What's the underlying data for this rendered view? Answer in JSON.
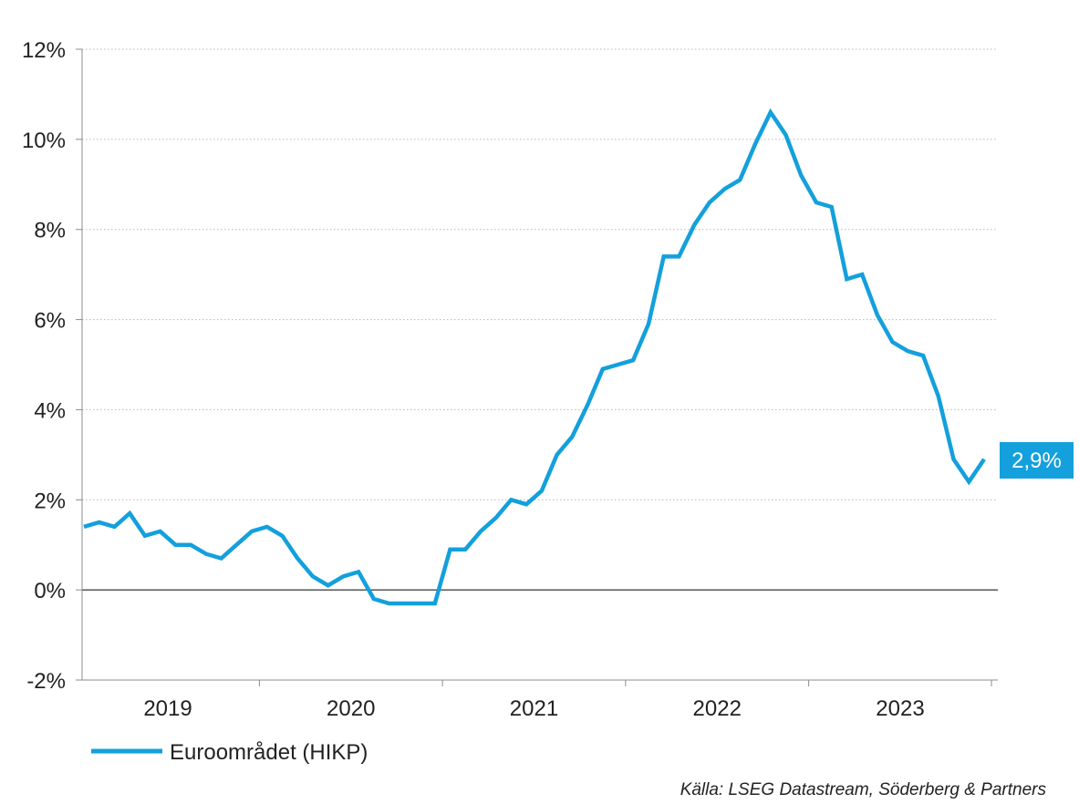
{
  "chart_data": {
    "type": "line",
    "title": "",
    "xlabel": "",
    "ylabel": "",
    "x_start": "2019-01",
    "x_end": "2023-12",
    "x_ticks": [
      "2019",
      "2020",
      "2021",
      "2022",
      "2023"
    ],
    "y_ticks": [
      "-2%",
      "0%",
      "2%",
      "4%",
      "6%",
      "8%",
      "10%",
      "12%"
    ],
    "ylim": [
      -2,
      12
    ],
    "grid": "horizontal-dotted",
    "zero_line": true,
    "series": [
      {
        "name": "Euroområdet (HIKP)",
        "color": "#13a0dc",
        "x": [
          "2019-01",
          "2019-02",
          "2019-03",
          "2019-04",
          "2019-05",
          "2019-06",
          "2019-07",
          "2019-08",
          "2019-09",
          "2019-10",
          "2019-11",
          "2019-12",
          "2020-01",
          "2020-02",
          "2020-03",
          "2020-04",
          "2020-05",
          "2020-06",
          "2020-07",
          "2020-08",
          "2020-09",
          "2020-10",
          "2020-11",
          "2020-12",
          "2021-01",
          "2021-02",
          "2021-03",
          "2021-04",
          "2021-05",
          "2021-06",
          "2021-07",
          "2021-08",
          "2021-09",
          "2021-10",
          "2021-11",
          "2021-12",
          "2022-01",
          "2022-02",
          "2022-03",
          "2022-04",
          "2022-05",
          "2022-06",
          "2022-07",
          "2022-08",
          "2022-09",
          "2022-10",
          "2022-11",
          "2022-12",
          "2023-01",
          "2023-02",
          "2023-03",
          "2023-04",
          "2023-05",
          "2023-06",
          "2023-07",
          "2023-08",
          "2023-09",
          "2023-10",
          "2023-11",
          "2023-12"
        ],
        "values": [
          1.4,
          1.5,
          1.4,
          1.7,
          1.2,
          1.3,
          1.0,
          1.0,
          0.8,
          0.7,
          1.0,
          1.3,
          1.4,
          1.2,
          0.7,
          0.3,
          0.1,
          0.3,
          0.4,
          -0.2,
          -0.3,
          -0.3,
          -0.3,
          -0.3,
          0.9,
          0.9,
          1.3,
          1.6,
          2.0,
          1.9,
          2.2,
          3.0,
          3.4,
          4.1,
          4.9,
          5.0,
          5.1,
          5.9,
          7.4,
          7.4,
          8.1,
          8.6,
          8.9,
          9.1,
          9.9,
          10.6,
          10.1,
          9.2,
          8.6,
          8.5,
          6.9,
          7.0,
          6.1,
          5.5,
          5.3,
          5.2,
          4.3,
          2.9,
          2.4,
          2.9
        ]
      }
    ],
    "last_value_label": "2,9%",
    "legend_position": "bottom-left",
    "source": "Källa: LSEG Datastream, Söderberg & Partners"
  }
}
